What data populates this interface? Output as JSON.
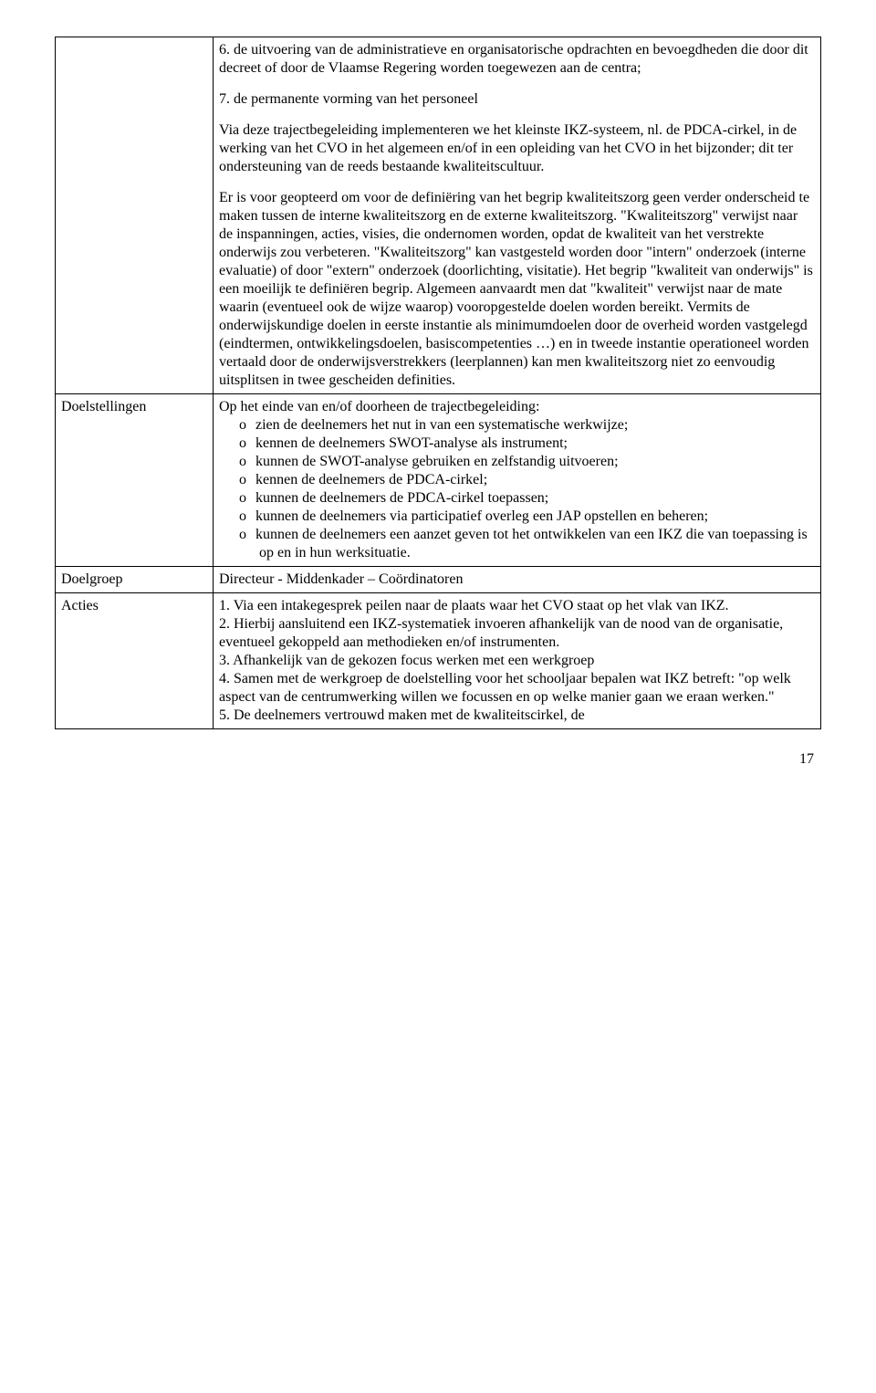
{
  "row1": {
    "label": "",
    "p1": "6. de uitvoering van de administratieve en organisatorische opdrachten en bevoegdheden die door dit decreet of door de Vlaamse Regering worden toegewezen aan de centra;",
    "p2": "7. de permanente vorming van het personeel",
    "p3": "Via deze trajectbegeleiding implementeren we het kleinste IKZ-systeem, nl. de PDCA-cirkel, in de werking van het CVO in het algemeen en/of in een opleiding van het CVO in het bijzonder; dit ter ondersteuning van de reeds bestaande kwaliteitscultuur.",
    "p4": "Er is voor geopteerd om voor de definiëring van het begrip kwaliteitszorg geen verder onderscheid te maken tussen de interne kwaliteitszorg en de externe kwaliteitszorg. \"Kwaliteitszorg\" verwijst naar de inspanningen, acties, visies, die ondernomen worden, opdat de kwaliteit van het verstrekte onderwijs zou verbeteren. \"Kwaliteitszorg\" kan vastgesteld worden door \"intern\" onderzoek (interne evaluatie) of door \"extern\" onderzoek (doorlichting, visitatie). Het begrip \"kwaliteit van onderwijs\" is een moeilijk te definiëren begrip. Algemeen aanvaardt men dat \"kwaliteit\" verwijst naar de mate waarin (eventueel ook de wijze waarop) vooropgestelde doelen worden bereikt. Vermits de onderwijskundige doelen in eerste instantie als minimumdoelen door de overheid worden vastgelegd (eindtermen, ontwikkelingsdoelen, basiscompetenties …) en in tweede instantie operationeel worden vertaald door de onderwijsverstrekkers (leerplannen) kan men kwaliteitszorg niet zo eenvoudig uitsplitsen in twee gescheiden definities."
  },
  "row2": {
    "label": "Doelstellingen",
    "intro": "Op het einde van en/of doorheen de trajectbegeleiding:",
    "items": [
      "zien de deelnemers het nut in van een systematische werkwijze;",
      "kennen de deelnemers SWOT-analyse als instrument;",
      "kunnen de SWOT-analyse gebruiken en zelfstandig uitvoeren;",
      "kennen de deelnemers de PDCA-cirkel;",
      "kunnen de deelnemers de PDCA-cirkel toepassen;",
      "kunnen de deelnemers via participatief overleg een JAP opstellen en beheren;",
      "kunnen de deelnemers een aanzet geven tot het ontwikkelen van een IKZ die van toepassing is op en in hun werksituatie."
    ]
  },
  "row3": {
    "label": "Doelgroep",
    "value": "Directeur - Middenkader – Coördinatoren"
  },
  "row4": {
    "label": "Acties",
    "lines": [
      "1. Via een intakegesprek peilen naar de plaats waar het CVO staat op het vlak van IKZ.",
      "2. Hierbij aansluitend een IKZ-systematiek invoeren afhankelijk van de nood van de organisatie, eventueel gekoppeld aan methodieken en/of instrumenten.",
      "3. Afhankelijk van de gekozen focus werken met een werkgroep",
      "4. Samen met de werkgroep de doelstelling voor het schooljaar bepalen wat IKZ betreft: \"op welk aspect van de centrumwerking willen we focussen en op welke manier gaan we eraan werken.\"",
      "5. De deelnemers vertrouwd maken met de kwaliteitscirkel, de"
    ]
  },
  "page_number": "17"
}
